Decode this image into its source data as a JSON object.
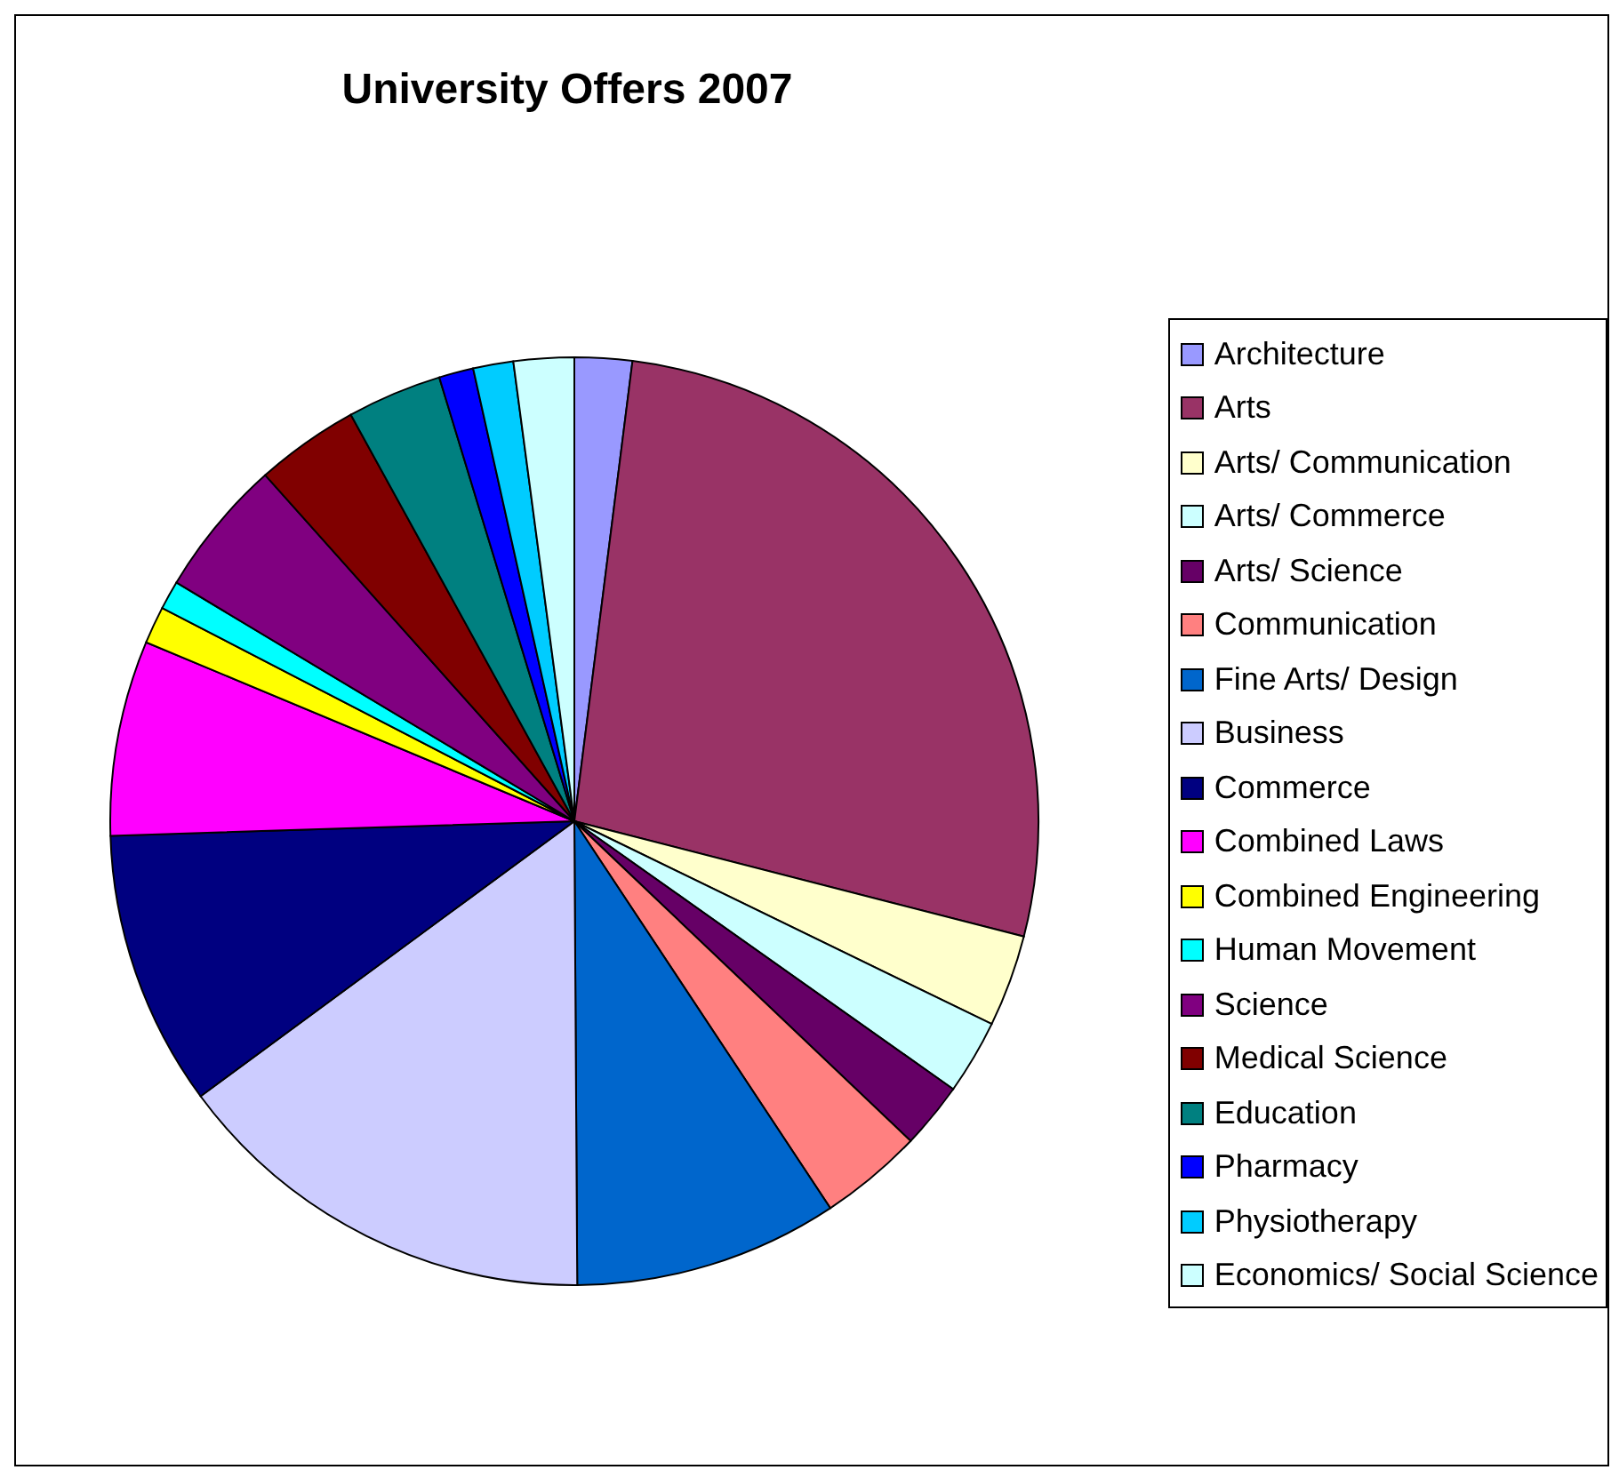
{
  "chart_data": {
    "type": "pie",
    "title": "University Offers 2007",
    "categories": [
      "Architecture",
      "Arts",
      "Arts/ Communication",
      "Arts/ Commerce",
      "Arts/ Science",
      "Communication",
      "Fine Arts/ Design",
      "Business",
      "Commerce",
      "Combined Laws",
      "Combined Engineering",
      "Human Movement",
      "Science",
      "Medical Science",
      "Education",
      "Pharmacy",
      "Physiotherapy",
      "Economics/ Social Science"
    ],
    "values": [
      2.0,
      27.0,
      3.2,
      2.6,
      2.3,
      3.6,
      9.2,
      15.0,
      9.6,
      6.8,
      1.3,
      1.0,
      4.8,
      3.6,
      3.3,
      1.2,
      1.4,
      2.1
    ],
    "colors": [
      "#9999ff",
      "#993366",
      "#ffffcc",
      "#ccffff",
      "#660066",
      "#ff8080",
      "#0066cc",
      "#ccccff",
      "#000080",
      "#ff00ff",
      "#ffff00",
      "#00ffff",
      "#800080",
      "#800000",
      "#008080",
      "#0000ff",
      "#00ccff",
      "#ccffff"
    ],
    "legend": "right"
  }
}
